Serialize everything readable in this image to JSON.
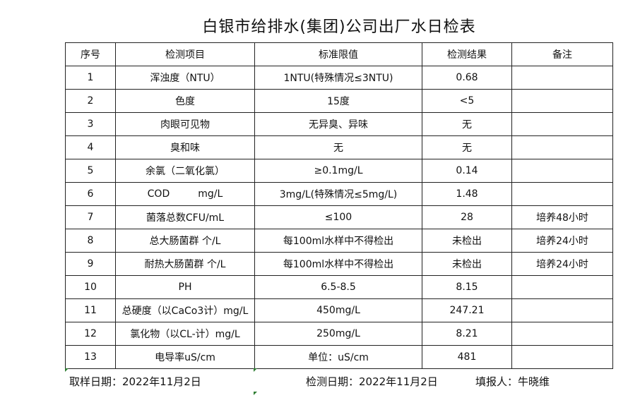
{
  "title": "白银市给排水(集团)公司出厂水日检表",
  "headers": [
    "序号",
    "检测项目",
    "标准限值",
    "检测结果",
    "备注"
  ],
  "rows": [
    [
      "1",
      "浑浊度（NTU）",
      "1NTU(特殊情况≤3NTU)",
      "0.68",
      ""
    ],
    [
      "2",
      "色度",
      "15度",
      "<5",
      ""
    ],
    [
      "3",
      "肉眼可见物",
      "无异臭、异味",
      "无",
      ""
    ],
    [
      "4",
      "臭和味",
      "无",
      "无",
      ""
    ],
    [
      "5",
      "余氯（二氧化氯）",
      "≥0.1mg/L",
      "0.14",
      ""
    ],
    [
      "6",
      "COD         mg/L",
      "3mg/L(特殊情况≤5mg/L)",
      "1.48",
      ""
    ],
    [
      "7",
      "菌落总数CFU/mL",
      "≤100",
      "28",
      "培养48小时"
    ],
    [
      "8",
      "总大肠菌群 个/L",
      "每100ml水样中不得检出",
      "未检出",
      "培养24小时"
    ],
    [
      "9",
      "耐热大肠菌群 个/L",
      "每100ml水样中不得检出",
      "未检出",
      "培养24小时"
    ],
    [
      "10",
      "PH",
      "6.5-8.5",
      "8.15",
      ""
    ],
    [
      "11",
      "总硬度（以CaCo3计）mg/L",
      "450mg/L",
      "247.21",
      ""
    ],
    [
      "12",
      "氯化物（以CL-计）mg/L",
      "250mg/L",
      "8.21",
      ""
    ],
    [
      "13",
      "电导率uS/cm",
      "单位：uS/cm",
      "481",
      ""
    ]
  ],
  "footer": {
    "sampling_date": "取样日期：2022年11月2日",
    "test_date": "检测日期：2022年11月2日",
    "reporter": "填报人：牛晓维"
  }
}
